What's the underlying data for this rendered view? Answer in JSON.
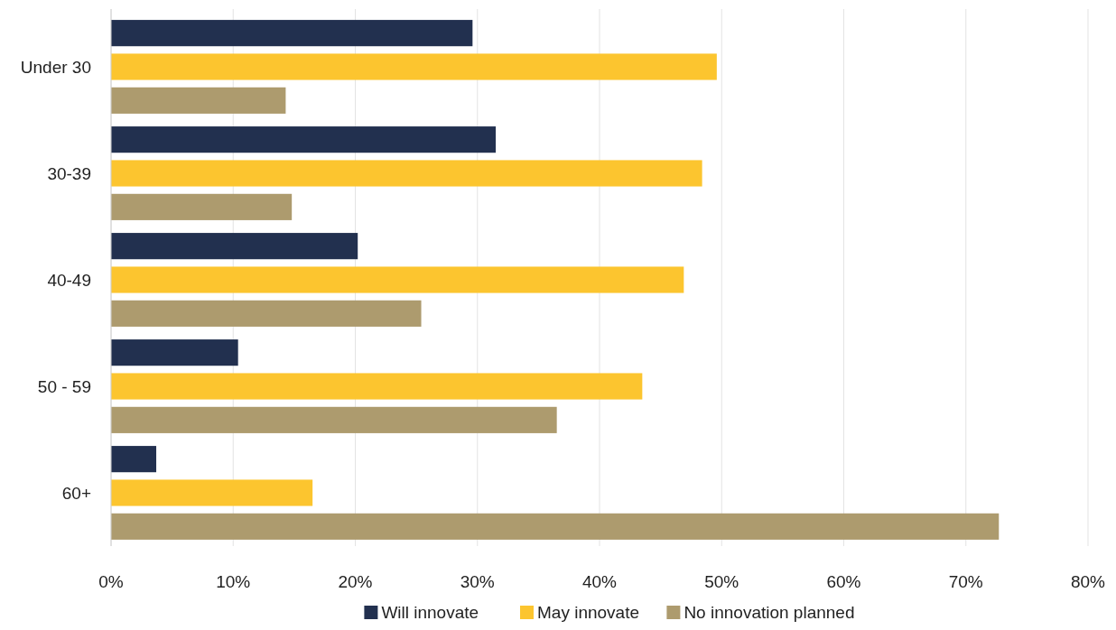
{
  "chart_data": {
    "type": "bar",
    "orientation": "horizontal",
    "categories": [
      "Under 30",
      "30-39",
      "40-49",
      "50 - 59",
      "60+"
    ],
    "series": [
      {
        "name": "Will innovate",
        "color": "#22304f",
        "values": [
          29.6,
          31.5,
          20.2,
          10.4,
          3.7
        ]
      },
      {
        "name": "May innovate",
        "color": "#fcc52f",
        "values": [
          49.6,
          48.4,
          46.9,
          43.5,
          16.5
        ]
      },
      {
        "name": "No innovation planned",
        "color": "#ad9b6e",
        "values": [
          14.3,
          14.8,
          25.4,
          36.5,
          72.7
        ]
      }
    ],
    "xlim": [
      0,
      80
    ],
    "xticks": [
      {
        "value": 0,
        "label": "0%"
      },
      {
        "value": 10,
        "label": "10%"
      },
      {
        "value": 20,
        "label": "20%"
      },
      {
        "value": 30,
        "label": "30%"
      },
      {
        "value": 40,
        "label": "40%"
      },
      {
        "value": 50,
        "label": "50%"
      },
      {
        "value": 60,
        "label": "60%"
      },
      {
        "value": 70,
        "label": "70%"
      },
      {
        "value": 80,
        "label": "80%"
      }
    ],
    "grid": "x",
    "legend": "bottom"
  }
}
